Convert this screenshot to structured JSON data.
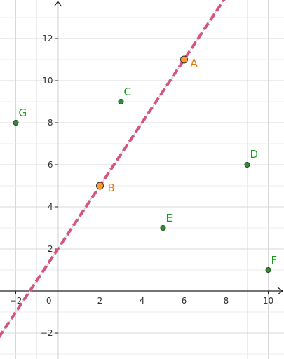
{
  "chart_data": {
    "type": "scatter",
    "title": "",
    "xlabel": "",
    "ylabel": "",
    "xlim": [
      -2.7,
      10.8
    ],
    "ylim": [
      -3.5,
      13.5
    ],
    "grid": true,
    "x_ticks": [
      -2,
      0,
      2,
      4,
      6,
      8,
      10
    ],
    "y_ticks": [
      -2,
      2,
      4,
      6,
      8,
      10,
      12
    ],
    "origin_label": "0",
    "points": [
      {
        "name": "A",
        "x": 6,
        "y": 11,
        "color": "#e6780a",
        "fill": "#ff9b30"
      },
      {
        "name": "B",
        "x": 2,
        "y": 5,
        "color": "#e6780a",
        "fill": "#ff9b30"
      },
      {
        "name": "C",
        "x": 3,
        "y": 9,
        "color": "#1a9a1a",
        "fill": "#2e8b2e"
      },
      {
        "name": "D",
        "x": 9,
        "y": 6,
        "color": "#1a9a1a",
        "fill": "#2e8b2e"
      },
      {
        "name": "E",
        "x": 5,
        "y": 3,
        "color": "#1a9a1a",
        "fill": "#2e8b2e"
      },
      {
        "name": "F",
        "x": 10,
        "y": 1,
        "color": "#1a9a1a",
        "fill": "#2e8b2e"
      },
      {
        "name": "G",
        "x": -2,
        "y": 8,
        "color": "#1a9a1a",
        "fill": "#2e8b2e"
      }
    ],
    "line": {
      "through": [
        "A",
        "B"
      ],
      "slope": 1.5,
      "intercept": 2,
      "color": "#d6547e",
      "style": "dashed"
    }
  }
}
